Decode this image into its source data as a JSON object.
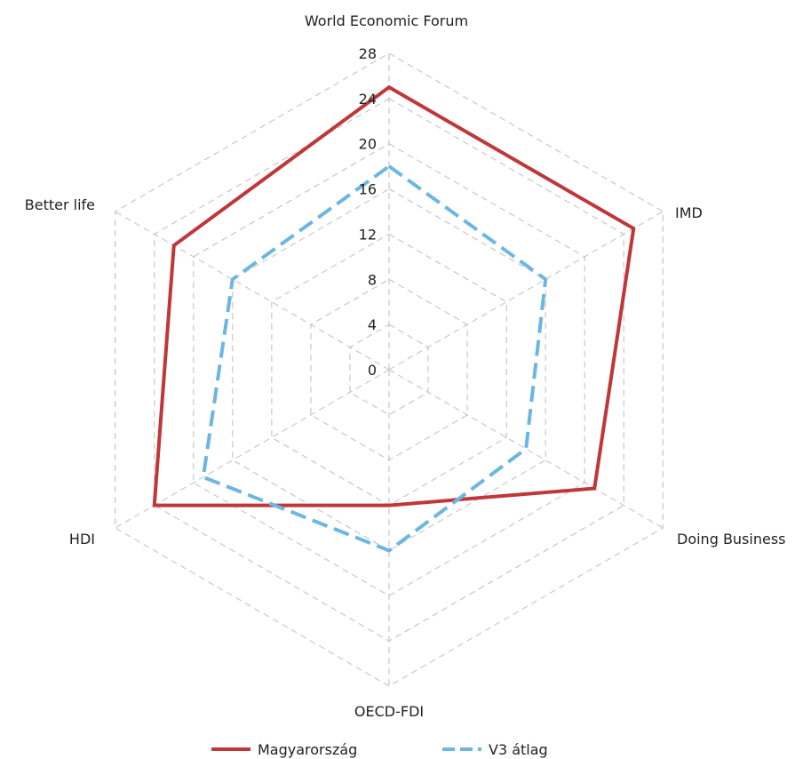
{
  "chart_data": {
    "type": "radar",
    "title": "",
    "categories": [
      "World Economic Forum",
      "IMD",
      "Doing Business",
      "OECD-FDI",
      "HDI",
      "Better life"
    ],
    "rlim": [
      0,
      28
    ],
    "ticks": [
      0,
      4,
      8,
      12,
      16,
      20,
      24,
      28
    ],
    "grid": true,
    "legend_position": "bottom",
    "series": [
      {
        "name": "Magyarország",
        "color": "#c0373a",
        "style": "solid",
        "values": [
          25,
          25,
          21,
          12,
          24,
          22
        ]
      },
      {
        "name": "V3 átlag",
        "color": "#6cb6e2",
        "style": "dashed",
        "values": [
          18,
          16,
          14,
          16,
          19,
          16
        ]
      }
    ]
  }
}
